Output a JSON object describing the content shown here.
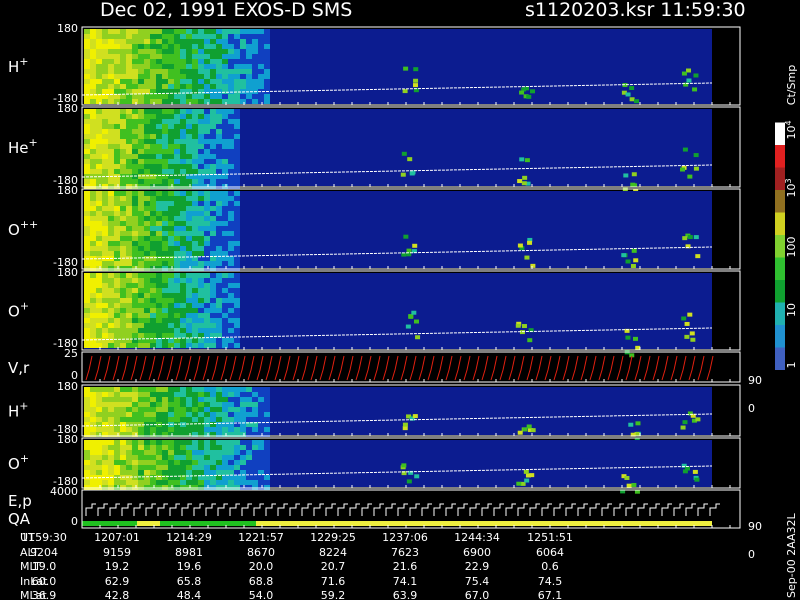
{
  "header": {
    "title": "Dec 02, 1991   EXOS-D SMS",
    "file": "s1120203.ksr  11:59:30"
  },
  "panels": [
    {
      "label": "H",
      "sup": "+",
      "top": "180",
      "bottom": "-180"
    },
    {
      "label": "He",
      "sup": "+",
      "top": "180",
      "bottom": "-180"
    },
    {
      "label": "O",
      "sup": "++",
      "top": "180",
      "bottom": "-180"
    },
    {
      "label": "O",
      "sup": "+",
      "top": "180",
      "bottom": "-180"
    },
    {
      "label": "V,r",
      "top": "25",
      "bottom": "0",
      "right_top": "90",
      "right_bottom": "0"
    },
    {
      "label": "H",
      "sup": "+",
      "top": "180",
      "bottom": "-180"
    },
    {
      "label": "O",
      "sup": "+",
      "top": "180",
      "bottom": "-180"
    },
    {
      "label": "E,p",
      "label2": "QA",
      "top": "4000",
      "bottom": "0",
      "right_top": "90",
      "right_bottom": "0"
    }
  ],
  "colorbar": {
    "unit": "Ct/Smp",
    "labels": [
      {
        "text": "1"
      },
      {
        "text": "10"
      },
      {
        "text": "100"
      },
      {
        "text": "10",
        "sup": "3"
      },
      {
        "text": "10",
        "sup": "4"
      }
    ]
  },
  "footer": {
    "rows": [
      {
        "label": "UT",
        "values": [
          "1159:30",
          "1207:01",
          "1214:29",
          "1221:57",
          "1229:25",
          "1237:06",
          "1244:34",
          "1251:51"
        ]
      },
      {
        "label": "ALT",
        "values": [
          "9204",
          "9159",
          "8981",
          "8670",
          "8224",
          "7623",
          "6900",
          "6064"
        ]
      },
      {
        "label": "MLT",
        "values": [
          "19.0",
          "19.2",
          "19.6",
          "20.0",
          "20.7",
          "21.6",
          "22.9",
          "0.6"
        ]
      },
      {
        "label": "InLat",
        "values": [
          "60.0",
          "62.9",
          "65.8",
          "68.8",
          "71.6",
          "74.1",
          "75.4",
          "74.5"
        ]
      },
      {
        "label": "MLat",
        "values": [
          "36.9",
          "42.8",
          "48.4",
          "54.0",
          "59.2",
          "63.9",
          "67.0",
          "67.1"
        ]
      }
    ],
    "stamp": "Sep-00  2AA32L"
  }
}
